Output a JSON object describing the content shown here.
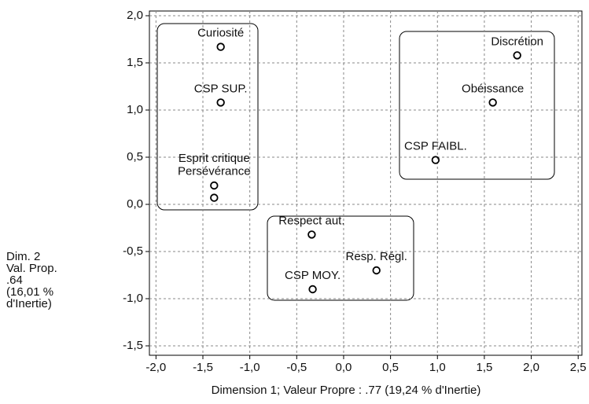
{
  "chart_data": {
    "type": "scatter",
    "x_label": "Dimension 1; Valeur Propre : .77 (19,24  % d'Inertie)",
    "y_label": [
      "Dim. 2",
      "Val. Prop.",
      " .64",
      "(16,01  %",
      "d'Inertie)"
    ],
    "xlim": [
      -2.07,
      2.54
    ],
    "ylim": [
      -1.6,
      2.05
    ],
    "xticks": [
      {
        "value": -2.0,
        "label": "-2,0"
      },
      {
        "value": -1.5,
        "label": "-1,5"
      },
      {
        "value": -1.0,
        "label": "-1,0"
      },
      {
        "value": -0.5,
        "label": "-0,5"
      },
      {
        "value": 0.0,
        "label": "0,0"
      },
      {
        "value": 0.5,
        "label": "0,5"
      },
      {
        "value": 1.0,
        "label": "1,0"
      },
      {
        "value": 1.5,
        "label": "1,5"
      },
      {
        "value": 2.0,
        "label": "2,0"
      },
      {
        "value": 2.5,
        "label": "2,5"
      }
    ],
    "yticks": [
      {
        "value": -1.5,
        "label": "-1,5"
      },
      {
        "value": -1.0,
        "label": "-1,0"
      },
      {
        "value": -0.5,
        "label": "-0,5"
      },
      {
        "value": 0.0,
        "label": "0,0"
      },
      {
        "value": 0.5,
        "label": "0,5"
      },
      {
        "value": 1.0,
        "label": "1,0"
      },
      {
        "value": 1.5,
        "label": "1,5"
      },
      {
        "value": 2.0,
        "label": "2,0"
      }
    ],
    "grid": true,
    "color": "#000000",
    "points": [
      {
        "label": "Curiosité",
        "x": -1.31,
        "y": 1.67
      },
      {
        "label": "CSP SUP.",
        "x": -1.31,
        "y": 1.08
      },
      {
        "label": "Esprit critique",
        "x": -1.38,
        "y": 0.2
      },
      {
        "label": "Persévérance",
        "x": -1.38,
        "y": 0.07
      },
      {
        "label": "Discrétion",
        "x": 1.85,
        "y": 1.58
      },
      {
        "label": "Obéissance",
        "x": 1.59,
        "y": 1.08
      },
      {
        "label": "CSP FAIBL.",
        "x": 0.98,
        "y": 0.47
      },
      {
        "label": "Respect aut.",
        "x": -0.34,
        "y": -0.32
      },
      {
        "label": "Resp. Régl.",
        "x": 0.35,
        "y": -0.7
      },
      {
        "label": "CSP MOY.",
        "x": -0.33,
        "y": -0.9
      }
    ]
  }
}
